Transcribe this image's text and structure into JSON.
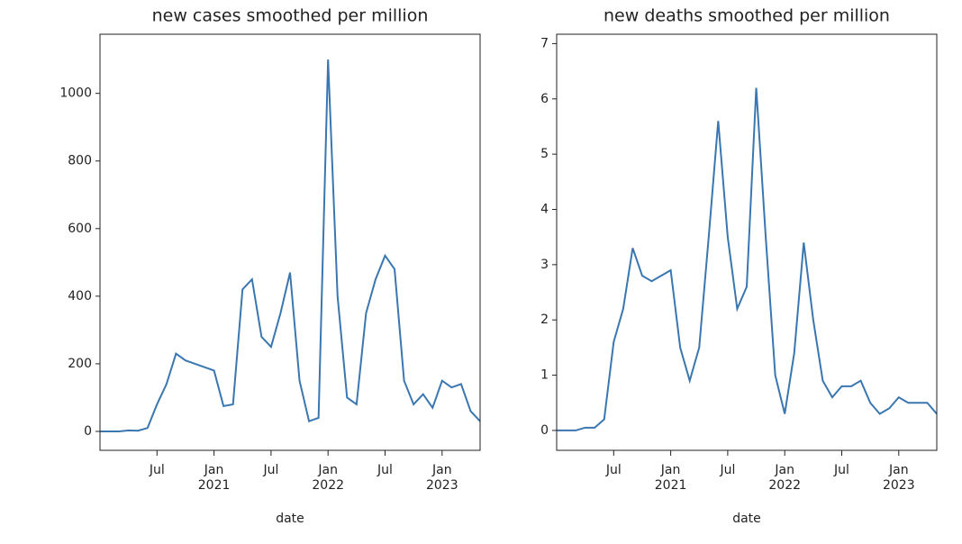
{
  "chart_data": [
    {
      "type": "line",
      "title": "new cases smoothed per million",
      "x_label": "date",
      "x": [
        "2020-01",
        "2020-02",
        "2020-03",
        "2020-04",
        "2020-05",
        "2020-06",
        "2020-07",
        "2020-08",
        "2020-09",
        "2020-10",
        "2020-11",
        "2020-12",
        "2021-01",
        "2021-02",
        "2021-03",
        "2021-04",
        "2021-05",
        "2021-06",
        "2021-07",
        "2021-08",
        "2021-09",
        "2021-10",
        "2021-11",
        "2021-12",
        "2022-01",
        "2022-02",
        "2022-03",
        "2022-04",
        "2022-05",
        "2022-06",
        "2022-07",
        "2022-08",
        "2022-09",
        "2022-10",
        "2022-11",
        "2022-12",
        "2023-01",
        "2023-02",
        "2023-03",
        "2023-04",
        "2023-05"
      ],
      "series": [
        {
          "color": "#3a76af",
          "values": [
            0,
            0,
            0,
            3,
            2,
            10,
            80,
            140,
            230,
            210,
            200,
            190,
            180,
            75,
            80,
            420,
            450,
            280,
            250,
            350,
            470,
            150,
            30,
            40,
            1100,
            400,
            100,
            80,
            350,
            450,
            520,
            480,
            150,
            80,
            110,
            70,
            150,
            130,
            140,
            60,
            30
          ]
        }
      ],
      "xlim": [
        "2020-01",
        "2023-05"
      ],
      "xticks": [
        {
          "value": "2020-07",
          "label": "Jul"
        },
        {
          "value": "2021-01",
          "label": "Jan\n2021"
        },
        {
          "value": "2021-07",
          "label": "Jul"
        },
        {
          "value": "2022-01",
          "label": "Jan\n2022"
        },
        {
          "value": "2022-07",
          "label": "Jul"
        },
        {
          "value": "2023-01",
          "label": "Jan\n2023"
        }
      ],
      "ylim": [
        -56,
        1175
      ],
      "yticks": [
        0,
        200,
        400,
        600,
        800,
        1000
      ]
    },
    {
      "type": "line",
      "title": "new deaths smoothed per million",
      "x_label": "date",
      "x": [
        "2020-01",
        "2020-02",
        "2020-03",
        "2020-04",
        "2020-05",
        "2020-06",
        "2020-07",
        "2020-08",
        "2020-09",
        "2020-10",
        "2020-11",
        "2020-12",
        "2021-01",
        "2021-02",
        "2021-03",
        "2021-04",
        "2021-05",
        "2021-06",
        "2021-07",
        "2021-08",
        "2021-09",
        "2021-10",
        "2021-11",
        "2021-12",
        "2022-01",
        "2022-02",
        "2022-03",
        "2022-04",
        "2022-05",
        "2022-06",
        "2022-07",
        "2022-08",
        "2022-09",
        "2022-10",
        "2022-11",
        "2022-12",
        "2023-01",
        "2023-02",
        "2023-03",
        "2023-04",
        "2023-05"
      ],
      "series": [
        {
          "color": "#3a76af",
          "values": [
            0,
            0,
            0,
            0.05,
            0.05,
            0.2,
            1.6,
            2.2,
            3.3,
            2.8,
            2.7,
            2.8,
            2.9,
            1.5,
            0.9,
            1.5,
            3.5,
            5.6,
            3.5,
            2.2,
            2.6,
            6.2,
            3.5,
            1.0,
            0.3,
            1.4,
            3.4,
            2.0,
            0.9,
            0.6,
            0.8,
            0.8,
            0.9,
            0.5,
            0.3,
            0.4,
            0.6,
            0.5,
            0.5,
            0.5,
            0.3
          ]
        }
      ],
      "xlim": [
        "2020-01",
        "2023-05"
      ],
      "xticks": [
        {
          "value": "2020-07",
          "label": "Jul"
        },
        {
          "value": "2021-01",
          "label": "Jan\n2021"
        },
        {
          "value": "2021-07",
          "label": "Jul"
        },
        {
          "value": "2022-01",
          "label": "Jan\n2022"
        },
        {
          "value": "2022-07",
          "label": "Jul"
        },
        {
          "value": "2023-01",
          "label": "Jan\n2023"
        }
      ],
      "ylim": [
        -0.36,
        7.17
      ],
      "yticks": [
        0,
        1,
        2,
        3,
        4,
        5,
        6,
        7
      ]
    }
  ]
}
